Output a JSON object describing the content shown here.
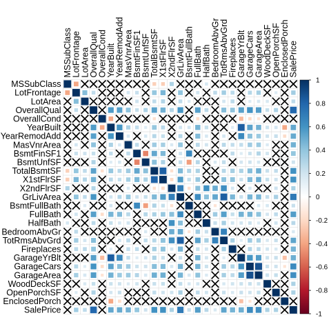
{
  "chart_data": {
    "type": "heatmap",
    "title": "",
    "variables": [
      "MSSubClass",
      "LotFrontage",
      "LotArea",
      "OverallQual",
      "OverallCond",
      "YearBuilt",
      "YearRemodAdd",
      "MasVnrArea",
      "BsmtFinSF1",
      "BsmtUnfSF",
      "TotalBsmtSF",
      "X1stFlrSF",
      "X2ndFlrSF",
      "GrLivArea",
      "BsmtFullBath",
      "FullBath",
      "HalfBath",
      "BedroomAbvGr",
      "TotRmsAbvGrd",
      "Fireplaces",
      "GarageYrBlt",
      "GarageCars",
      "GarageArea",
      "WoodDeckSF",
      "OpenPorchSF",
      "EnclosedPorch",
      "SalePrice"
    ],
    "lower_triangle": [
      [
        1
      ],
      [
        -0.39,
        1
      ],
      [
        -0.14,
        0.43,
        1
      ],
      [
        0.03,
        0.25,
        0.11,
        1
      ],
      [
        -0.06,
        -0.06,
        -0.01,
        -0.09,
        1
      ],
      [
        0.03,
        0.12,
        0.01,
        0.57,
        -0.38,
        1
      ],
      [
        0.04,
        0.09,
        0.01,
        0.55,
        0.07,
        0.59,
        1
      ],
      [
        0.02,
        0.19,
        0.1,
        0.41,
        -0.13,
        0.32,
        0.18,
        1
      ],
      [
        -0.07,
        0.23,
        0.21,
        0.24,
        -0.05,
        0.25,
        0.13,
        0.26,
        1
      ],
      [
        -0.14,
        0.13,
        -0.0,
        0.31,
        -0.14,
        0.15,
        0.18,
        0.11,
        -0.5,
        1
      ],
      [
        -0.24,
        0.39,
        0.26,
        0.54,
        -0.17,
        0.39,
        0.29,
        0.36,
        0.52,
        0.42,
        1
      ],
      [
        -0.25,
        0.46,
        0.3,
        0.48,
        -0.14,
        0.28,
        0.24,
        0.34,
        0.45,
        0.32,
        0.82,
        1
      ],
      [
        0.31,
        0.08,
        0.05,
        0.3,
        0.03,
        0.01,
        0.14,
        0.17,
        -0.14,
        0.0,
        -0.17,
        -0.2,
        1
      ],
      [
        0.07,
        0.4,
        0.26,
        0.59,
        -0.08,
        0.2,
        0.29,
        0.39,
        0.21,
        0.24,
        0.45,
        0.57,
        0.69,
        1
      ],
      [
        0.0,
        0.1,
        0.16,
        0.11,
        -0.05,
        0.19,
        0.12,
        0.09,
        0.65,
        -0.42,
        0.31,
        0.24,
        -0.17,
        0.03,
        1
      ],
      [
        0.13,
        0.2,
        0.13,
        0.55,
        -0.19,
        0.47,
        0.44,
        0.28,
        0.06,
        0.29,
        0.32,
        0.38,
        0.42,
        0.63,
        -0.06,
        1
      ],
      [
        0.18,
        0.05,
        0.01,
        0.27,
        -0.06,
        0.24,
        0.18,
        0.2,
        0.0,
        -0.04,
        -0.05,
        -0.12,
        0.61,
        0.42,
        -0.03,
        0.14,
        1
      ],
      [
        -0.02,
        0.26,
        0.12,
        0.1,
        0.01,
        -0.07,
        -0.04,
        0.1,
        -0.11,
        0.17,
        0.05,
        0.13,
        0.5,
        0.52,
        -0.15,
        0.36,
        0.23,
        1
      ],
      [
        0.04,
        0.35,
        0.19,
        0.43,
        -0.06,
        0.1,
        0.19,
        0.28,
        0.04,
        0.25,
        0.29,
        0.41,
        0.62,
        0.83,
        -0.05,
        0.55,
        0.34,
        0.68,
        1
      ],
      [
        -0.05,
        0.27,
        0.27,
        0.4,
        -0.02,
        0.15,
        0.11,
        0.25,
        0.26,
        0.05,
        0.34,
        0.41,
        0.19,
        0.46,
        0.14,
        0.24,
        0.2,
        0.11,
        0.33,
        1
      ],
      [
        0.09,
        0.07,
        -0.02,
        0.55,
        -0.32,
        0.83,
        0.64,
        0.25,
        0.15,
        0.19,
        0.32,
        0.23,
        0.07,
        0.23,
        0.12,
        0.48,
        0.2,
        -0.06,
        0.15,
        0.05,
        1
      ],
      [
        -0.04,
        0.29,
        0.15,
        0.6,
        -0.19,
        0.54,
        0.42,
        0.36,
        0.22,
        0.21,
        0.43,
        0.44,
        0.18,
        0.47,
        0.13,
        0.47,
        0.22,
        0.09,
        0.36,
        0.3,
        0.59,
        1
      ],
      [
        -0.1,
        0.34,
        0.18,
        0.56,
        -0.15,
        0.48,
        0.37,
        0.37,
        0.3,
        0.18,
        0.49,
        0.49,
        0.14,
        0.47,
        0.18,
        0.41,
        0.16,
        0.07,
        0.34,
        0.27,
        0.56,
        0.88,
        1
      ],
      [
        -0.01,
        0.09,
        0.17,
        0.24,
        -0.0,
        0.22,
        0.21,
        0.16,
        0.2,
        -0.01,
        0.23,
        0.24,
        0.09,
        0.25,
        0.18,
        0.19,
        0.11,
        0.05,
        0.17,
        0.2,
        0.22,
        0.23,
        0.22,
        1
      ],
      [
        -0.01,
        0.15,
        0.08,
        0.31,
        -0.03,
        0.19,
        0.23,
        0.13,
        0.11,
        0.13,
        0.25,
        0.21,
        0.21,
        0.33,
        0.06,
        0.26,
        0.2,
        0.09,
        0.23,
        0.17,
        0.23,
        0.21,
        0.24,
        0.06,
        1
      ],
      [
        -0.01,
        0.01,
        -0.02,
        -0.11,
        0.07,
        -0.39,
        -0.19,
        -0.11,
        -0.1,
        -0.0,
        -0.1,
        -0.07,
        0.06,
        0.01,
        -0.05,
        -0.12,
        -0.1,
        0.04,
        0.0,
        -0.02,
        -0.3,
        -0.15,
        -0.12,
        -0.13,
        -0.09,
        1
      ],
      [
        -0.08,
        0.35,
        0.26,
        0.79,
        -0.08,
        0.52,
        0.51,
        0.48,
        0.39,
        0.21,
        0.61,
        0.61,
        0.32,
        0.71,
        0.23,
        0.56,
        0.28,
        0.17,
        0.53,
        0.47,
        0.49,
        0.64,
        0.62,
        0.32,
        0.32,
        -0.13,
        1
      ]
    ],
    "non_significant_marker": "cross",
    "colorbar": {
      "range": [
        -1,
        1
      ],
      "ticks": [
        "1",
        "0.8",
        "0.6",
        "0.4",
        "0.2",
        "0",
        "-0.2",
        "-0.4",
        "-0.6",
        "-0.8",
        "-1"
      ],
      "stops": [
        "#67001F",
        "#B2182B",
        "#D6604D",
        "#F4A582",
        "#FDDBC7",
        "#FFFFFF",
        "#D1E5F0",
        "#92C5DE",
        "#4393C3",
        "#2166AC",
        "#053061"
      ]
    },
    "significance_threshold": 0.15,
    "legend": "right"
  }
}
